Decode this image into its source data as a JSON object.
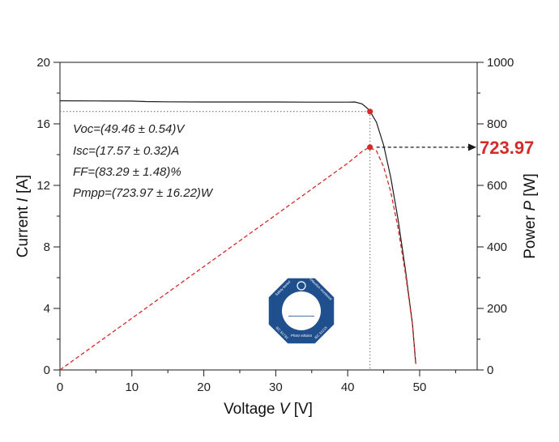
{
  "chart_data": {
    "type": "line",
    "xlabel_prefix": "Voltage ",
    "xlabel_var": "V",
    "xlabel_unit": " [V]",
    "ylabel_left_prefix": "Current ",
    "ylabel_left_var": "I",
    "ylabel_left_unit": " [A]",
    "ylabel_right_prefix": "Power ",
    "ylabel_right_var": "P",
    "ylabel_right_unit": " [W]",
    "xlim": [
      0,
      58
    ],
    "ylim_left": [
      0,
      20
    ],
    "ylim_right": [
      0,
      1000
    ],
    "x_ticks": [
      "0",
      "10",
      "20",
      "30",
      "40",
      "50"
    ],
    "y_left_ticks": [
      "0",
      "4",
      "8",
      "12",
      "16",
      "20"
    ],
    "y_right_ticks": [
      "0",
      "200",
      "400",
      "600",
      "800",
      "1000"
    ],
    "grid": false,
    "series": [
      {
        "axis": "left",
        "color": "#1a1a1a",
        "style": "solid",
        "x": [
          0,
          5,
          10,
          12,
          15,
          20,
          25,
          30,
          35,
          38,
          40,
          41,
          42,
          43,
          44,
          45,
          46,
          47,
          48,
          49,
          49.46
        ],
        "y": [
          17.5,
          17.49,
          17.48,
          17.45,
          17.43,
          17.42,
          17.42,
          17.42,
          17.41,
          17.41,
          17.41,
          17.42,
          17.3,
          16.9,
          16.1,
          14.6,
          12.5,
          9.8,
          6.6,
          3.0,
          0.4
        ]
      },
      {
        "axis": "right",
        "color": "#d42a2a",
        "style": "dashed",
        "x": [
          0,
          10,
          20,
          30,
          40,
          42,
          43,
          44,
          45,
          46,
          47,
          48,
          49,
          49.46
        ],
        "y": [
          0,
          168,
          336,
          504,
          672,
          710,
          723.97,
          712,
          660,
          578,
          462,
          318,
          148,
          20
        ]
      }
    ],
    "mpp_points": [
      {
        "axis": "left",
        "x": 43.1,
        "y": 16.8
      },
      {
        "axis": "right",
        "x": 43.1,
        "y": 723.97
      }
    ],
    "annotations": [
      "Voc=(49.46 ± 0.54)V",
      "Isc=(17.57 ± 0.32)A",
      "FF=(83.29 ± 1.48)%",
      "Pmpp=(723.97 ± 16.22)W"
    ],
    "callout_value": "723.97",
    "callout_color": "#d42a2a"
  },
  "logo": {
    "name": "TÜV SÜD",
    "brand": "TÜV",
    "sub": "SÜD",
    "ring_left_top": "Safety tested",
    "ring_right_top": "Production monitored",
    "ring_bottom_left": "IEC 61730",
    "ring_bottom_mid": "Photo voltaics",
    "ring_bottom_right": "IEC 61215",
    "color": "#1f4f8c"
  }
}
